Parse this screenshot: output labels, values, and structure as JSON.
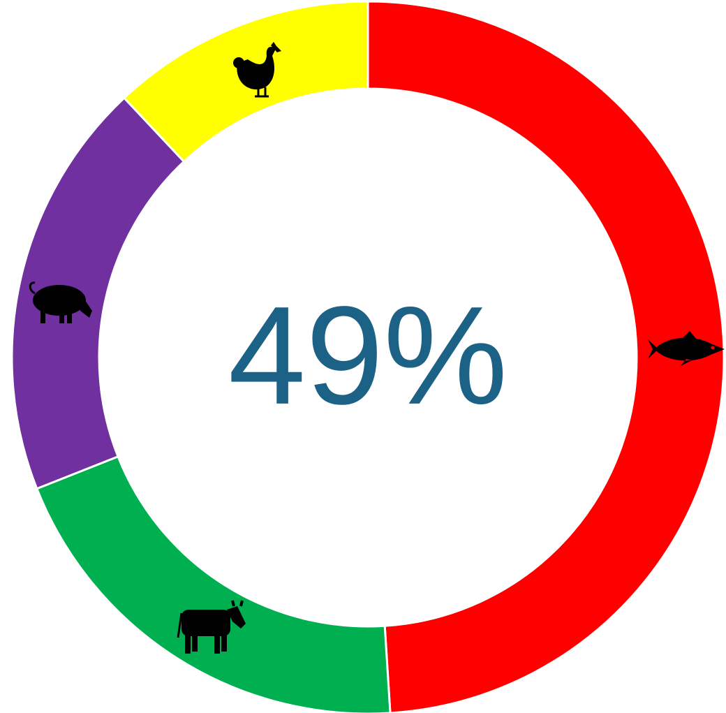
{
  "chart_data": {
    "type": "donut",
    "center_label": "49%",
    "values": [
      49,
      20,
      19,
      12
    ],
    "colors": [
      "#ff0000",
      "#00b050",
      "#7030a0",
      "#ffff00"
    ]
  }
}
